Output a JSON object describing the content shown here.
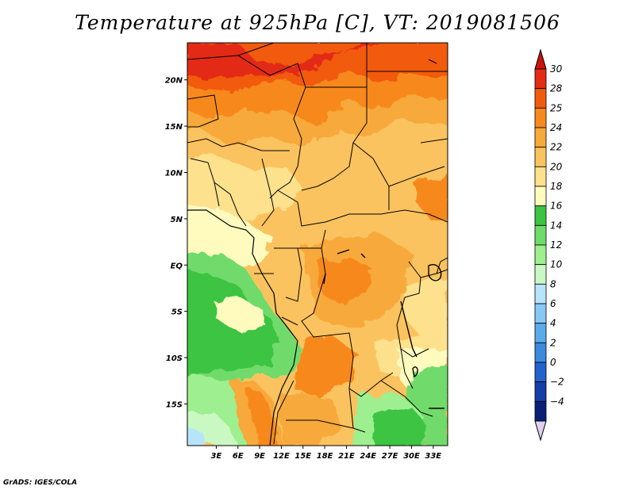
{
  "title": "Temperature at 925hPa [C], VT: 2019081506",
  "credit": "GrADS: IGES/COLA",
  "map": {
    "lon_range": [
      -1,
      35
    ],
    "lat_range": [
      -19.5,
      24
    ],
    "lon_ticks": [
      {
        "value": 3,
        "label": "3E"
      },
      {
        "value": 6,
        "label": "6E"
      },
      {
        "value": 9,
        "label": "9E"
      },
      {
        "value": 12,
        "label": "12E"
      },
      {
        "value": 15,
        "label": "15E"
      },
      {
        "value": 18,
        "label": "18E"
      },
      {
        "value": 21,
        "label": "21E"
      },
      {
        "value": 24,
        "label": "24E"
      },
      {
        "value": 27,
        "label": "27E"
      },
      {
        "value": 30,
        "label": "30E"
      },
      {
        "value": 33,
        "label": "33E"
      }
    ],
    "lat_ticks": [
      {
        "value": 20,
        "label": "20N"
      },
      {
        "value": 15,
        "label": "15N"
      },
      {
        "value": 10,
        "label": "10N"
      },
      {
        "value": 5,
        "label": "5N"
      },
      {
        "value": 0,
        "label": "EQ"
      },
      {
        "value": -5,
        "label": "5S"
      },
      {
        "value": -10,
        "label": "10S"
      },
      {
        "value": -15,
        "label": "15S"
      }
    ]
  },
  "colorbar": {
    "levels": [
      {
        "label": "30",
        "color": "#e32c14"
      },
      {
        "label": "28",
        "color": "#f25a0e"
      },
      {
        "label": "25",
        "color": "#f7891e"
      },
      {
        "label": "24",
        "color": "#f7a93a"
      },
      {
        "label": "22",
        "color": "#fbc35e"
      },
      {
        "label": "20",
        "color": "#fde18d"
      },
      {
        "label": "18",
        "color": "#fffbbf"
      },
      {
        "label": "16",
        "color": "#3cc442"
      },
      {
        "label": "14",
        "color": "#6fdb6a"
      },
      {
        "label": "12",
        "color": "#9def8f"
      },
      {
        "label": "10",
        "color": "#c9f8c2"
      },
      {
        "label": "8",
        "color": "#b6e4fb"
      },
      {
        "label": "6",
        "color": "#88c8f4"
      },
      {
        "label": "4",
        "color": "#5aabeb"
      },
      {
        "label": "2",
        "color": "#3a8ade"
      },
      {
        "label": "0",
        "color": "#2262cf"
      },
      {
        "label": "−2",
        "color": "#163ea8"
      },
      {
        "label": "−4",
        "color": "#0c1f78"
      }
    ],
    "top_color": "#c8140c",
    "bottom_color": "#e0d0f0"
  }
}
